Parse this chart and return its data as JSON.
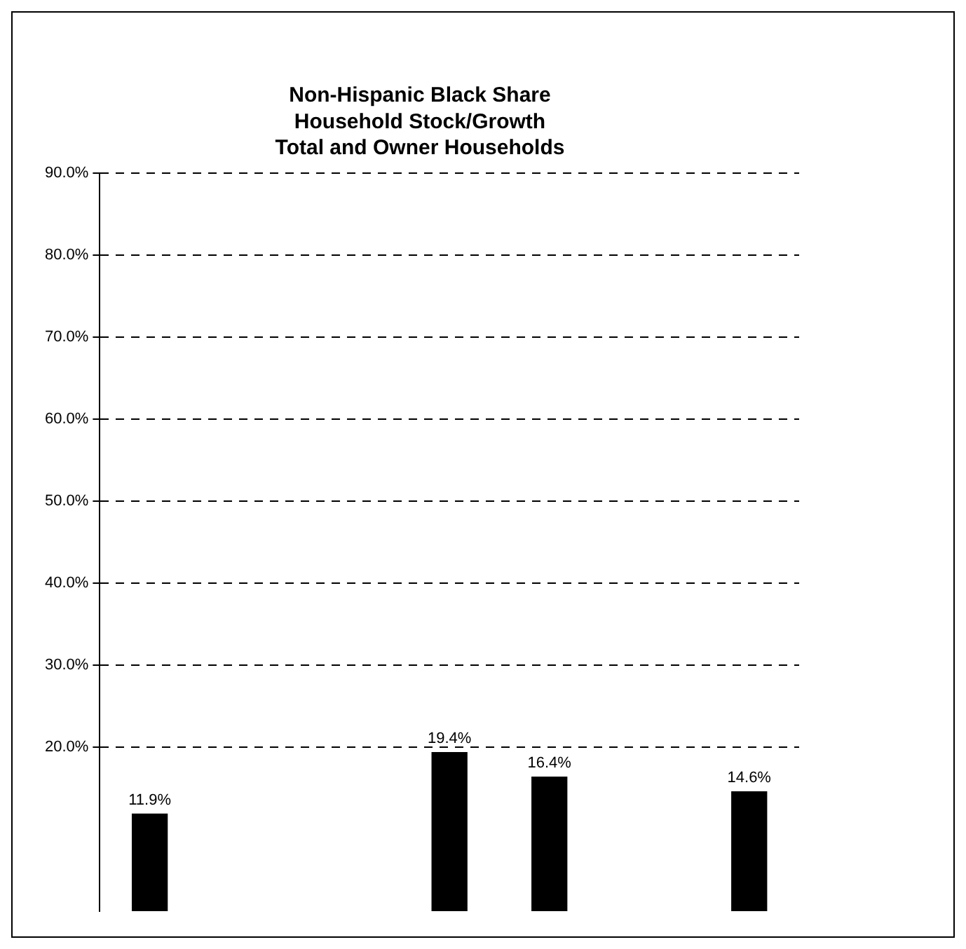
{
  "chart_data": {
    "type": "bar",
    "title": "Non-Hispanic Black Share\nHousehold Stock/Growth\nTotal and Owner Households",
    "categories": [
      null,
      null,
      null,
      null,
      null,
      null,
      null
    ],
    "values": [
      11.9,
      null,
      null,
      19.4,
      16.4,
      null,
      14.6
    ],
    "color": "#000000",
    "value_labels": [
      "11.9%",
      null,
      null,
      "19.4%",
      "16.4%",
      null,
      "14.6%"
    ],
    "ylim": [
      0,
      90
    ],
    "yticks": [
      {
        "value": 20,
        "label": "20.0%"
      },
      {
        "value": 30,
        "label": "30.0%"
      },
      {
        "value": 40,
        "label": "40.0%"
      },
      {
        "value": 50,
        "label": "50.0%"
      },
      {
        "value": 60,
        "label": "60.0%"
      },
      {
        "value": 70,
        "label": "70.0%"
      },
      {
        "value": 80,
        "label": "80.0%"
      },
      {
        "value": 90,
        "label": "90.0%"
      }
    ],
    "grid": "y",
    "legend": false
  }
}
